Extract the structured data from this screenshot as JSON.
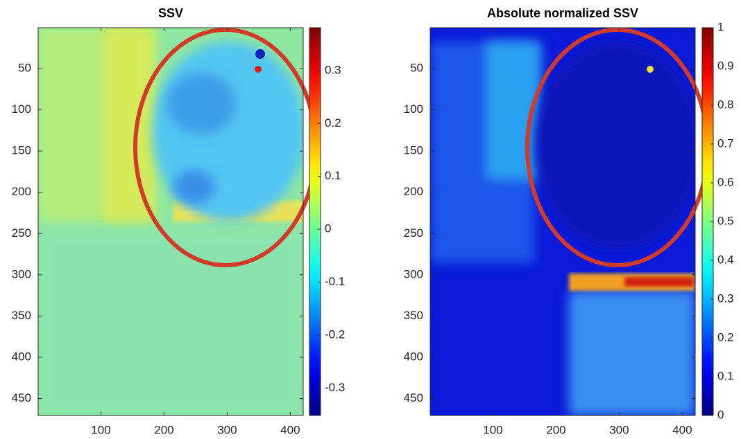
{
  "chart_data": [
    {
      "type": "heatmap",
      "title": "SSV",
      "colormap": "jet",
      "xlim": [
        0.5,
        420.5
      ],
      "xticks": [
        100,
        200,
        300,
        400
      ],
      "ylim": [
        0.5,
        470.5
      ],
      "yticks": [
        50,
        100,
        150,
        200,
        250,
        300,
        350,
        400,
        450
      ],
      "y_reversed": true,
      "clim": [
        -0.352,
        0.381
      ],
      "cticks": [
        -0.3,
        -0.2,
        -0.1,
        0,
        0.1,
        0.2,
        0.3
      ]
    },
    {
      "type": "heatmap",
      "title": "Absolute normalized SSV",
      "colormap": "jet",
      "xlim": [
        0.5,
        420.5
      ],
      "xticks": [
        100,
        200,
        300,
        400
      ],
      "ylim": [
        0.5,
        470.5
      ],
      "yticks": [
        50,
        100,
        150,
        200,
        250,
        300,
        350,
        400,
        450
      ],
      "y_reversed": true,
      "clim": [
        0,
        1
      ],
      "cticks": [
        0,
        0.1,
        0.2,
        0.3,
        0.4,
        0.5,
        0.6,
        0.7,
        0.8,
        0.9,
        1
      ]
    }
  ]
}
